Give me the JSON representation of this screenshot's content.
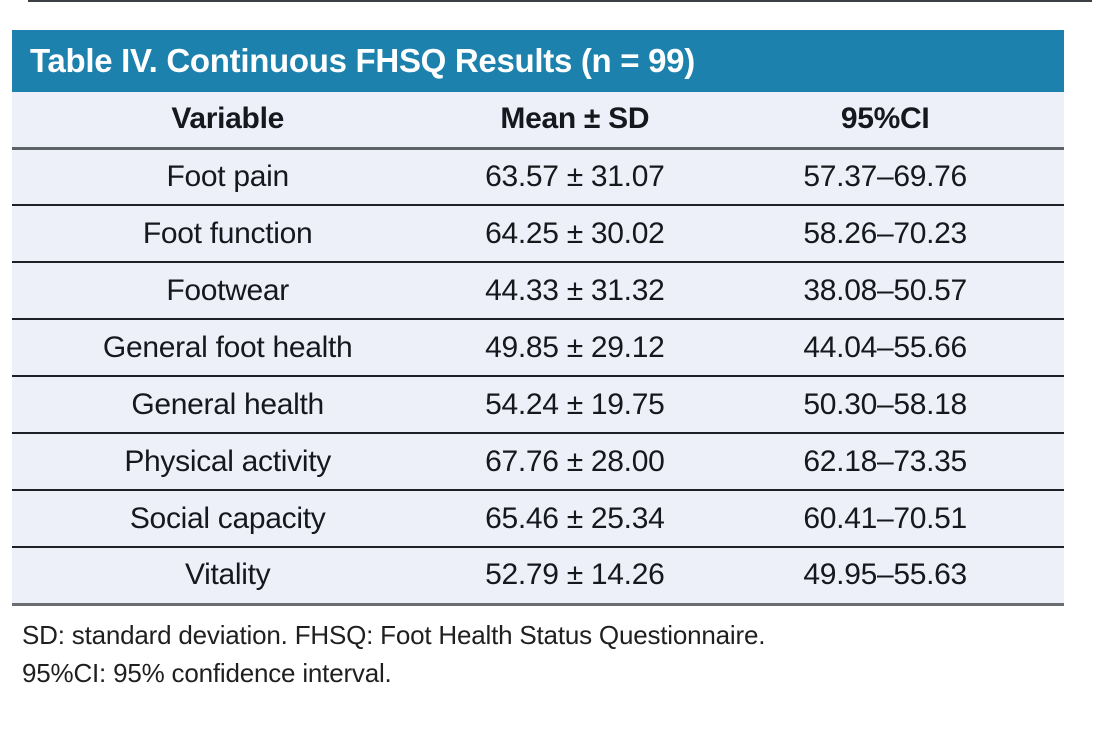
{
  "table": {
    "title": "Table IV. Continuous FHSQ Results (n = 99)",
    "columns": [
      "Variable",
      "Mean ± SD",
      "95%CI"
    ],
    "rows": [
      {
        "variable": "Foot pain",
        "mean_sd": "63.57 ± 31.07",
        "ci": "57.37–69.76"
      },
      {
        "variable": "Foot function",
        "mean_sd": "64.25 ± 30.02",
        "ci": "58.26–70.23"
      },
      {
        "variable": "Footwear",
        "mean_sd": "44.33 ± 31.32",
        "ci": "38.08–50.57"
      },
      {
        "variable": "General foot health",
        "mean_sd": "49.85 ± 29.12",
        "ci": "44.04–55.66"
      },
      {
        "variable": "General health",
        "mean_sd": "54.24 ± 19.75",
        "ci": "50.30–58.18"
      },
      {
        "variable": "Physical activity",
        "mean_sd": "67.76 ± 28.00",
        "ci": "62.18–73.35"
      },
      {
        "variable": "Social capacity",
        "mean_sd": "65.46 ± 25.34",
        "ci": "60.41–70.51"
      },
      {
        "variable": "Vitality",
        "mean_sd": "52.79 ± 14.26",
        "ci": "49.95–55.63"
      }
    ],
    "footnotes": [
      "SD: standard deviation. FHSQ: Foot Health Status Questionnaire.",
      "95%CI: 95% confidence interval."
    ],
    "colors": {
      "title_bg": "#1d81ad",
      "title_text": "#ffffff",
      "row_bg": "#edf0f8",
      "header_divider": "#5d6269",
      "row_divider": "#1d2127",
      "bottom_divider": "#6a6e72"
    }
  }
}
